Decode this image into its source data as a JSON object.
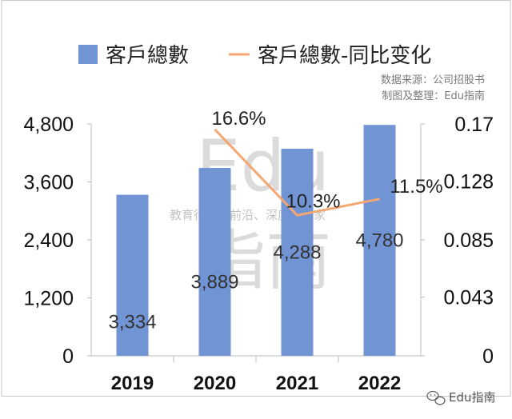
{
  "chart_data": {
    "type": "bar",
    "categories": [
      "2019",
      "2020",
      "2021",
      "2022"
    ],
    "series": [
      {
        "name": "客戶總數",
        "type": "bar",
        "axis": "left",
        "color": "#7094d4",
        "values": [
          3334,
          3889,
          4288,
          4780
        ],
        "labels": [
          "3,334",
          "3,889",
          "4,288",
          "4,780"
        ]
      },
      {
        "name": "客戶總數-同比变化",
        "type": "line",
        "axis": "right",
        "color": "#f4a772",
        "values": [
          null,
          0.166,
          0.103,
          0.115
        ],
        "labels": [
          "",
          "16.6%",
          "10.3%",
          "11.5%"
        ]
      }
    ],
    "y_left": {
      "ylim": [
        0,
        4800
      ],
      "ticks": [
        0,
        1200,
        2400,
        3600,
        4800
      ],
      "tick_labels": [
        "0",
        "1,200",
        "2,400",
        "3,600",
        "4,800"
      ]
    },
    "y_right": {
      "ylim": [
        0,
        0.17
      ],
      "ticks": [
        0,
        0.043,
        0.085,
        0.128,
        0.17
      ],
      "tick_labels": [
        "0",
        "0.043",
        "0.085",
        "0.128",
        "0.17"
      ]
    },
    "legend": {
      "placement": "top"
    },
    "grid": false
  },
  "source": {
    "line1": "数据来源：公司招股书",
    "line2": "制图及整理：Edu指南"
  },
  "watermark": {
    "latin": "Edu",
    "cn": "指南",
    "tagline": "教育行业，前沿、深度、独家"
  },
  "badge": {
    "text": "Edu指南",
    "icon": "wechat-icon"
  }
}
